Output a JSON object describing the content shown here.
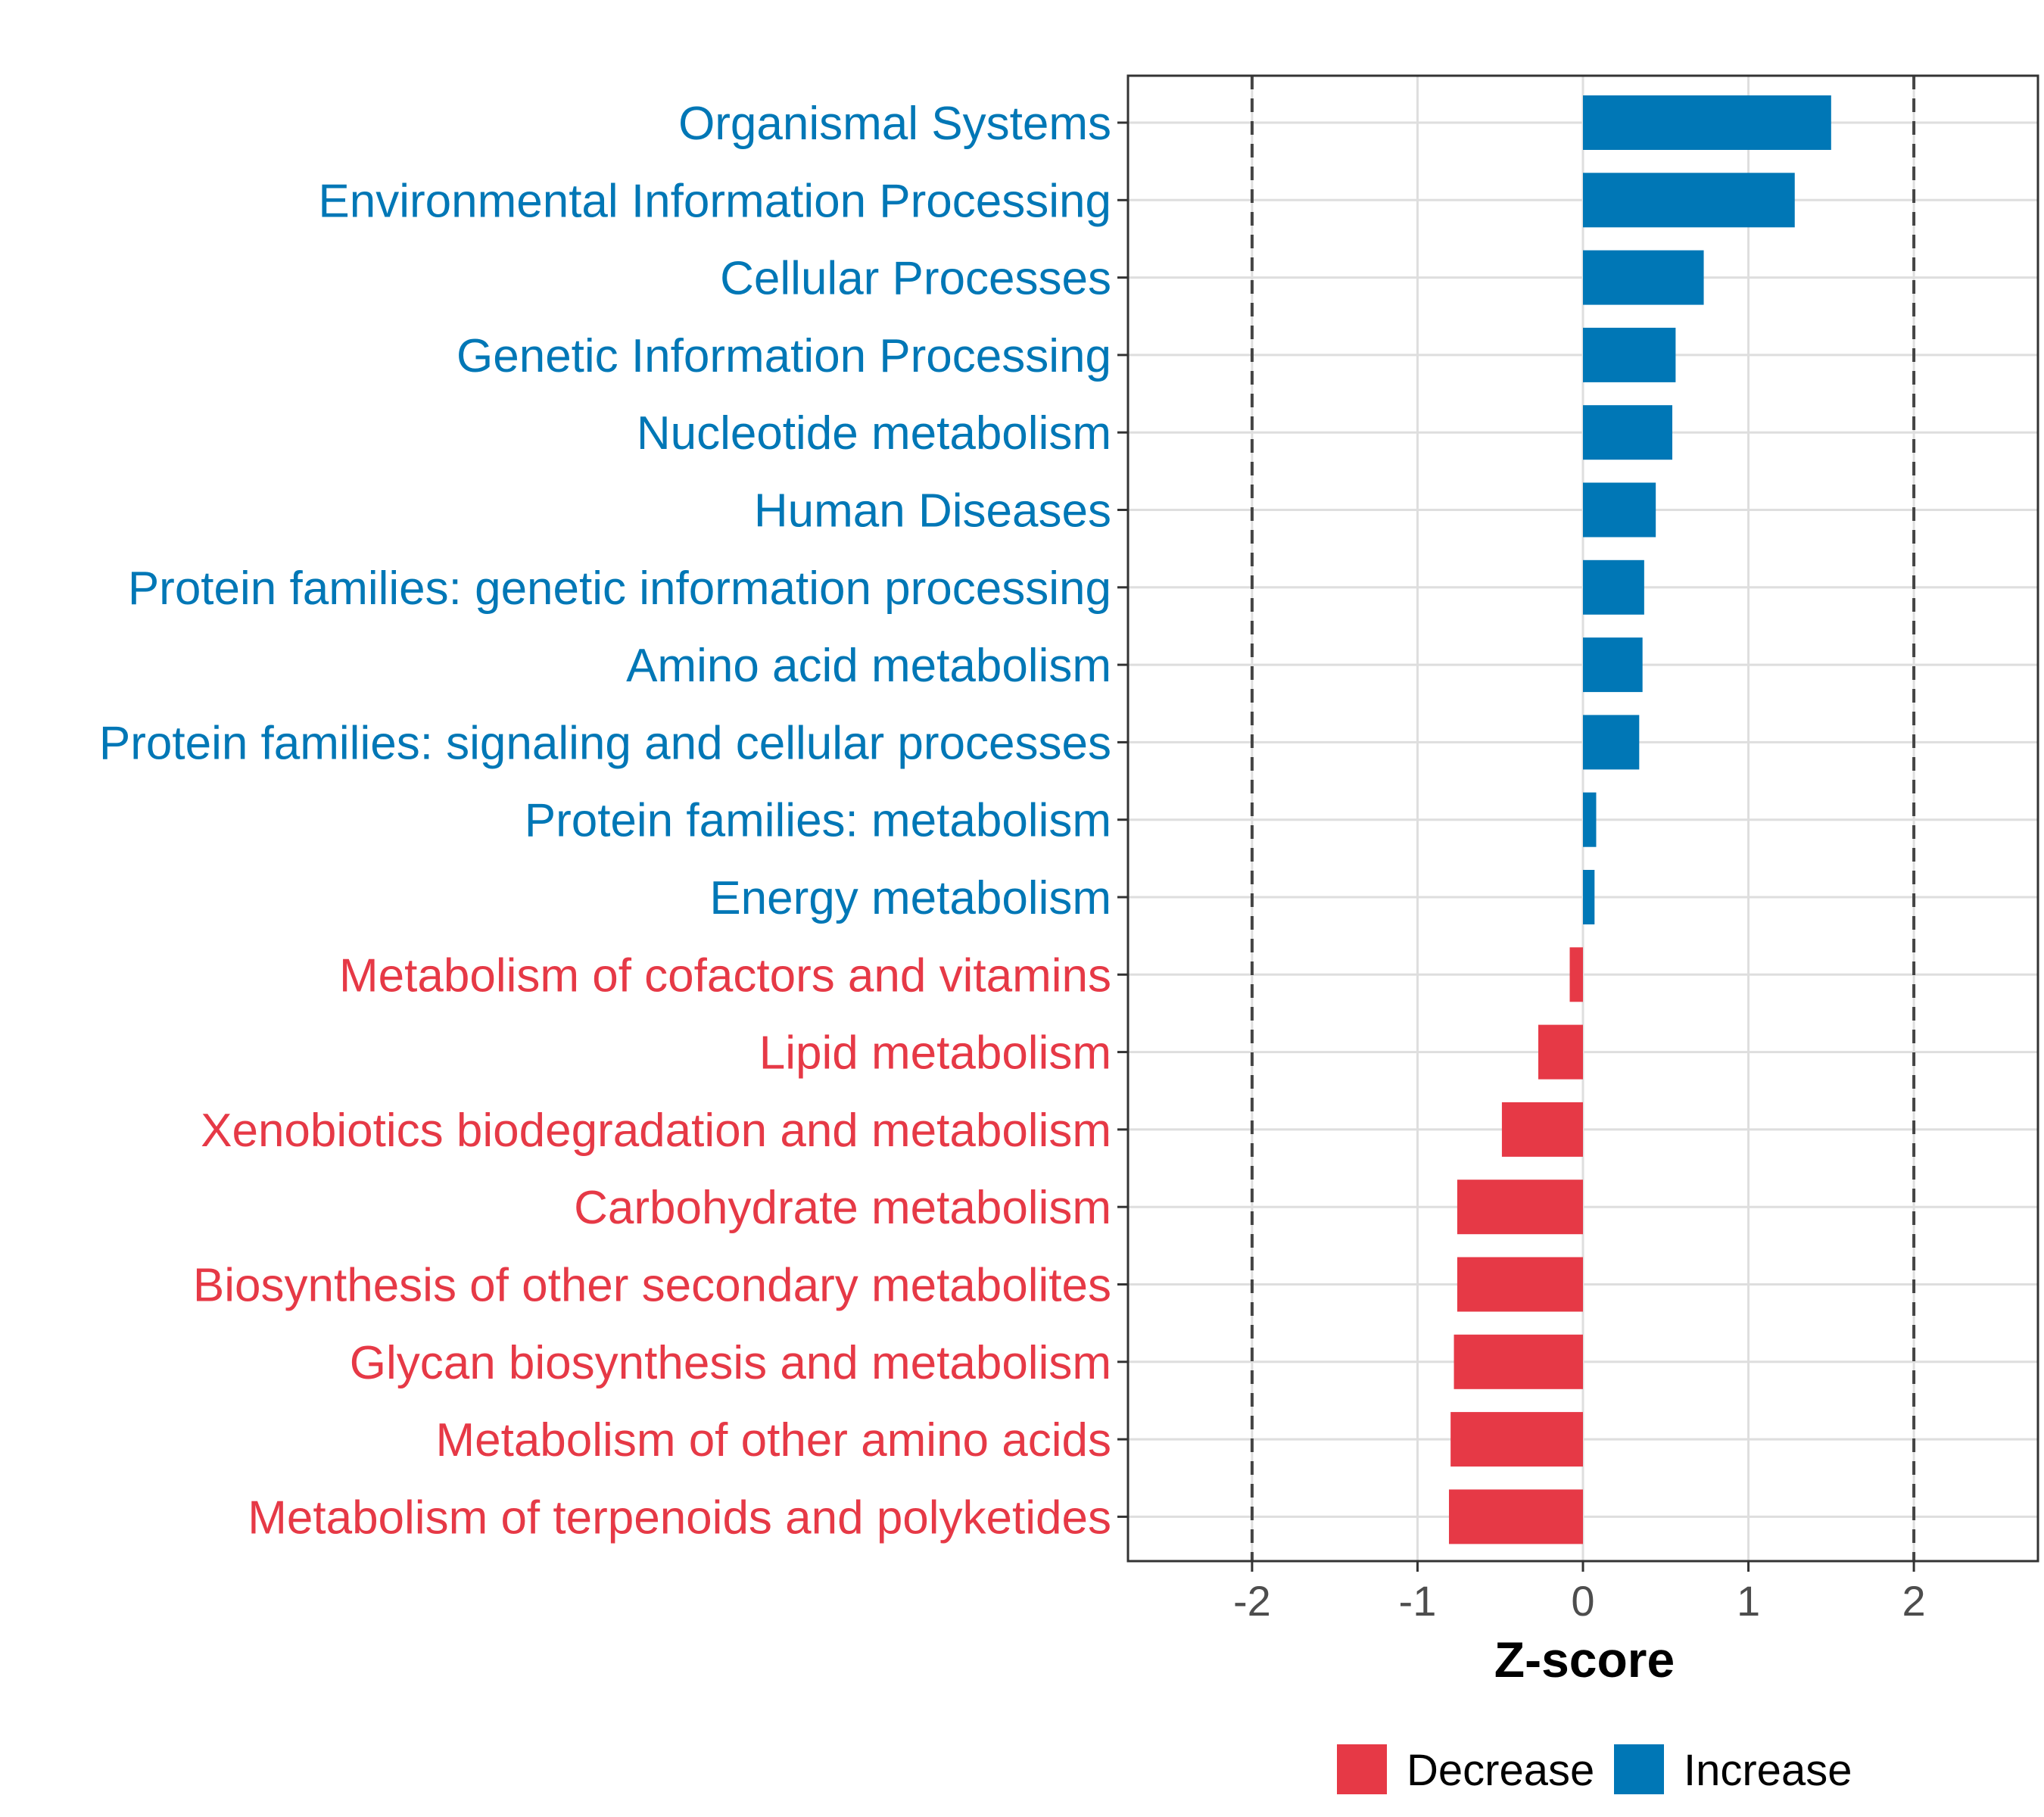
{
  "chart_data": {
    "type": "bar",
    "orientation": "horizontal",
    "xlabel": "Z-score",
    "ylabel": "",
    "xlim": [
      -2.75,
      2.75
    ],
    "xticks": [
      -2,
      -1,
      0,
      1,
      2
    ],
    "xtick_labels": [
      "-2",
      "-1",
      "0",
      "1",
      "2"
    ],
    "reference_lines": [
      -2,
      2
    ],
    "grid": true,
    "legend_position": "bottom",
    "colors": {
      "Decrease": "#e63946",
      "Increase": "#0077b6"
    },
    "legend": [
      {
        "name": "Decrease",
        "color": "#e63946"
      },
      {
        "name": "Increase",
        "color": "#0077b6"
      }
    ],
    "categories": [
      "Organismal Systems",
      "Environmental Information Processing",
      "Cellular Processes",
      "Genetic Information Processing",
      "Nucleotide metabolism",
      "Human Diseases",
      "Protein families: genetic information processing",
      "Amino acid metabolism",
      "Protein families: signaling and cellular processes",
      "Protein families: metabolism",
      "Energy metabolism",
      "Metabolism of cofactors and vitamins",
      "Lipid metabolism",
      "Xenobiotics biodegradation and metabolism",
      "Carbohydrate metabolism",
      "Biosynthesis of other secondary metabolites",
      "Glycan biosynthesis and metabolism",
      "Metabolism of other amino acids",
      "Metabolism of terpenoids and polyketides"
    ],
    "values": [
      1.5,
      1.28,
      0.73,
      0.56,
      0.54,
      0.44,
      0.37,
      0.36,
      0.34,
      0.08,
      0.07,
      -0.08,
      -0.27,
      -0.49,
      -0.76,
      -0.76,
      -0.78,
      -0.8,
      -0.81
    ],
    "groups": [
      "Increase",
      "Increase",
      "Increase",
      "Increase",
      "Increase",
      "Increase",
      "Increase",
      "Increase",
      "Increase",
      "Increase",
      "Increase",
      "Decrease",
      "Decrease",
      "Decrease",
      "Decrease",
      "Decrease",
      "Decrease",
      "Decrease",
      "Decrease"
    ]
  }
}
